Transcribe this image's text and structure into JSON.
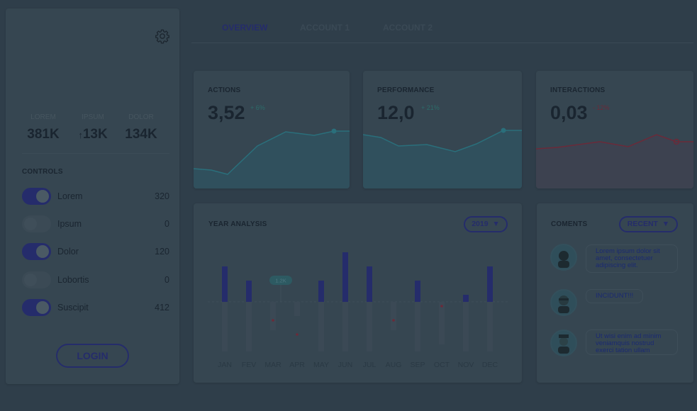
{
  "sidebar": {
    "stats": [
      {
        "label": "LOREM",
        "value": "381K"
      },
      {
        "label": "IPSUM",
        "value": "13K"
      },
      {
        "label": "DOLOR",
        "value": "134K"
      }
    ],
    "controls_title": "CONTROLS",
    "controls": [
      {
        "name": "Lorem",
        "value": "320",
        "on": true
      },
      {
        "name": "Ipsum",
        "value": "0",
        "on": false
      },
      {
        "name": "Dolor",
        "value": "120",
        "on": true
      },
      {
        "name": "Lobortis",
        "value": "0",
        "on": false
      },
      {
        "name": "Suscipit",
        "value": "412",
        "on": true
      }
    ],
    "login_label": "LOGIN"
  },
  "tabs": [
    "OVERVIEW",
    "ACCOUNT 1",
    "ACCOUNT 2"
  ],
  "metrics": [
    {
      "title": "ACTIONS",
      "value": "3,52",
      "delta": "+ 6%",
      "delta_color": "#2c6c6a",
      "line_color": "#2a6f7b",
      "fill_color": "#30505d"
    },
    {
      "title": "PERFORMANCE",
      "value": "12,0",
      "delta": "+ 21%",
      "delta_color": "#2c6c6a",
      "line_color": "#2a6f7b",
      "fill_color": "#30505d"
    },
    {
      "title": "INTERACTIONS",
      "value": "0,03",
      "delta": "- 12%",
      "delta_color": "#6b2a39",
      "line_color": "#6b2a39",
      "fill_color": "#3d4250"
    }
  ],
  "year_analysis": {
    "title": "YEAR ANALYSIS",
    "year_selector": "2019",
    "tooltip": "1.2K",
    "months": [
      "JAN",
      "FEV",
      "MAR",
      "APR",
      "MAY",
      "JUN",
      "JUL",
      "AUG",
      "SEP",
      "OCT",
      "NOV",
      "DEC"
    ]
  },
  "chart_data": {
    "type": "bar",
    "categories": [
      "JAN",
      "FEV",
      "MAR",
      "APR",
      "MAY",
      "JUN",
      "JUL",
      "AUG",
      "SEP",
      "OCT",
      "NOV",
      "DEC"
    ],
    "series": [
      {
        "values": [
          5,
          3,
          0,
          0,
          3,
          7,
          5,
          0,
          3,
          0,
          1,
          5
        ]
      },
      {
        "values": [
          -7,
          -7,
          -4,
          -2,
          -7,
          -7,
          -7,
          -4,
          -7,
          -6,
          -7,
          -7
        ]
      }
    ],
    "ylim": [
      -7,
      7
    ],
    "colors": {
      "up": "#252c6b",
      "down": "#3b4955",
      "dot": "#6b2a39"
    }
  },
  "comments": {
    "title": "COMENTS",
    "filter": "RECENT",
    "items": [
      {
        "lines": [
          "Lorem ipsum dolor sit",
          "amet, consectetuer",
          "adipiscing elit."
        ]
      },
      {
        "lines": [
          "INCIDUNT!!!"
        ]
      },
      {
        "lines": [
          "Ut wisi enim ad minim",
          "veniamquis nostrud",
          "exerci tation ullam"
        ]
      }
    ]
  },
  "colors": {
    "accent": "#252c6b",
    "background": "#2f3e4a",
    "card": "#364651"
  }
}
